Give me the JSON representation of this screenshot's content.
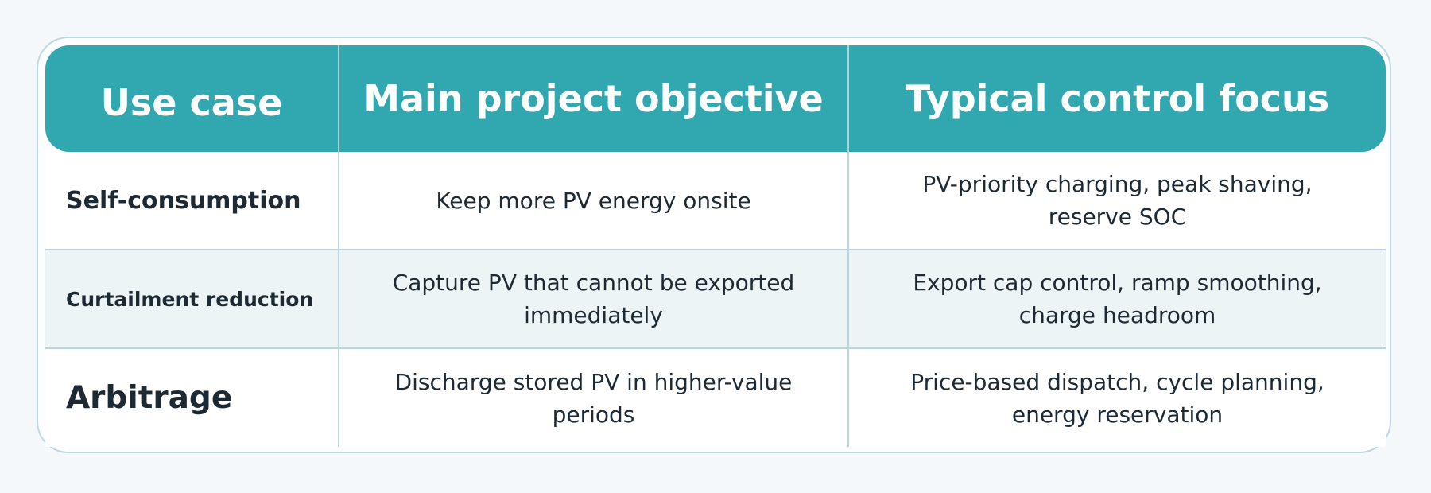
{
  "header": {
    "columns": [
      "Use case",
      "Main project objective",
      "Typical control focus"
    ]
  },
  "table": {
    "rows": [
      [
        "Self-consumption",
        "Keep more PV energy onsite",
        "PV-priority charging, peak shaving, reserve SOC"
      ],
      [
        "Curtailment reduction",
        "Capture PV that cannot be exported immediately",
        "Export cap control, ramp smoothing, charge headroom"
      ],
      [
        "Arbitrage",
        "Discharge stored PV in higher-value periods",
        "Price-based dispatch, cycle planning, energy reservation"
      ]
    ]
  }
}
